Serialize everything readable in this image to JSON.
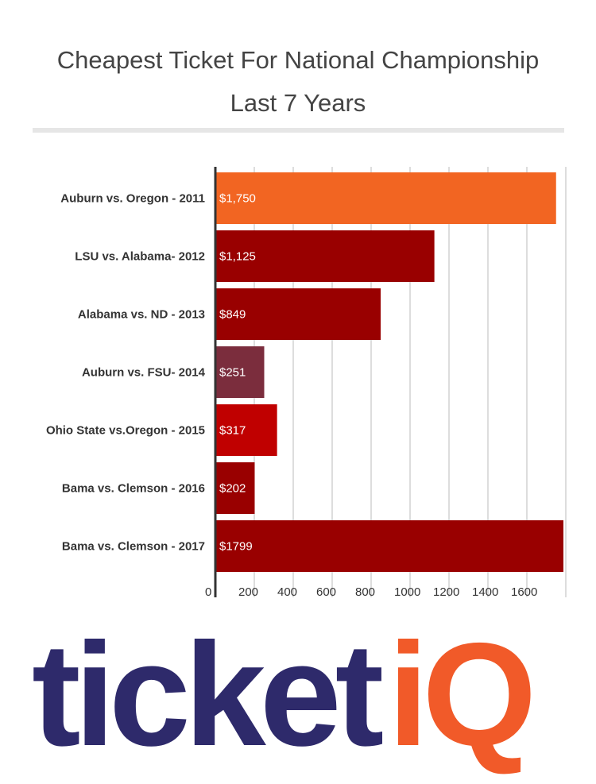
{
  "header": {
    "title_line1": "Cheapest Ticket For National Championship",
    "title_line2": "Last 7 Years"
  },
  "chart_data": {
    "type": "bar",
    "orientation": "horizontal",
    "categories": [
      "Auburn vs. Oregon - 2011",
      "LSU vs. Alabama- 2012",
      "Alabama vs. ND - 2013",
      "Auburn vs. FSU- 2014",
      "Ohio State vs.Oregon - 2015",
      "Bama vs. Clemson - 2016",
      "Bama vs. Clemson - 2017"
    ],
    "values": [
      1750,
      1125,
      849,
      251,
      317,
      202,
      1799
    ],
    "data_labels": [
      "$1,750",
      "$1,125",
      "$849",
      "$251",
      "$317",
      "$202",
      "$1799"
    ],
    "bar_colors": [
      "#f26522",
      "#990000",
      "#990000",
      "#7b2d3d",
      "#c00000",
      "#990000",
      "#990000"
    ],
    "xticks": [
      0,
      200,
      400,
      600,
      800,
      1000,
      1200,
      1400,
      1600
    ],
    "xtick_labels": [
      "0",
      "200",
      "400",
      "600",
      "800",
      "1000",
      "1200",
      "1400",
      "1600"
    ],
    "xlim": [
      0,
      1800
    ],
    "grid": true,
    "title": "Cheapest Ticket For National Championship Last 7 Years"
  },
  "logo": {
    "text_main": "ticket",
    "text_accent": "iQ",
    "color_main": "#2e2a6b",
    "color_accent": "#f15a29"
  }
}
